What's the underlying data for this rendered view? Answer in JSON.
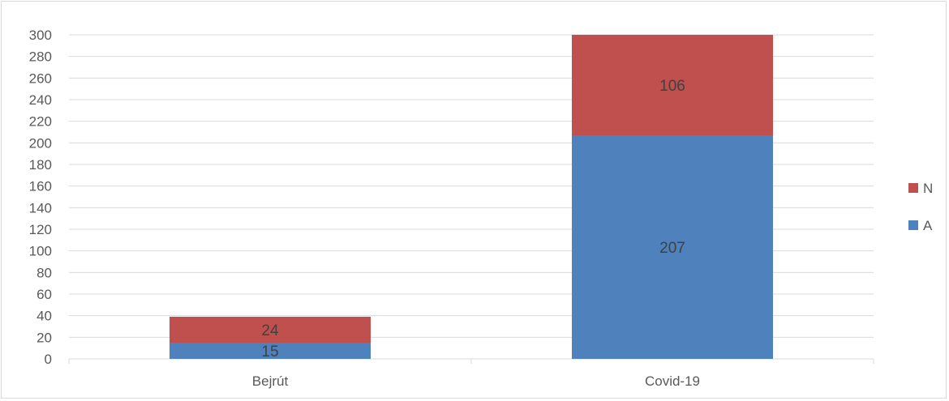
{
  "chart_data": {
    "type": "bar",
    "stacked": true,
    "categories": [
      "Bejrút",
      "Covid-19"
    ],
    "series": [
      {
        "name": "A",
        "values": [
          15,
          207
        ],
        "color": "#4f81bd"
      },
      {
        "name": "N",
        "values": [
          24,
          106
        ],
        "color": "#c0504d"
      }
    ],
    "ylim": [
      0,
      300
    ],
    "yticks": [
      0,
      20,
      40,
      60,
      80,
      100,
      120,
      140,
      160,
      180,
      200,
      220,
      240,
      260,
      280,
      300
    ],
    "grid": true,
    "legend": {
      "position": "right",
      "order": [
        "N",
        "A"
      ]
    },
    "data_labels": true
  }
}
